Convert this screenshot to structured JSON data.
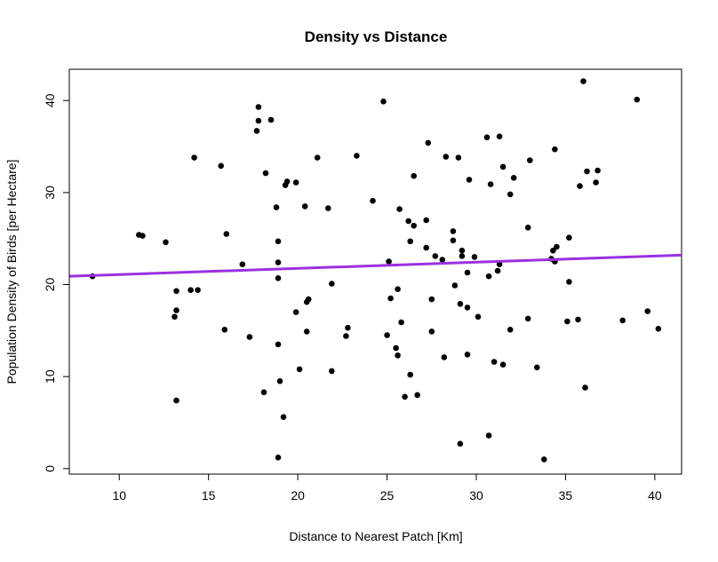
{
  "chart_data": {
    "type": "scatter",
    "title": "Density vs Distance",
    "xlabel": "Distance to Nearest Patch [Km]",
    "ylabel": "Population Density of Birds [per Hectare]",
    "xlim": [
      7.2,
      41.5
    ],
    "ylim": [
      -0.6,
      43.4
    ],
    "xticks": [
      10,
      15,
      20,
      25,
      30,
      35,
      40
    ],
    "yticks": [
      0,
      10,
      20,
      30,
      40
    ],
    "grid": false,
    "point_color": "#000000",
    "line_color": "#9b30e0",
    "regression_line": {
      "x": [
        7.2,
        41.5
      ],
      "y": [
        20.9,
        23.2
      ]
    },
    "points": [
      [
        8.5,
        20.9
      ],
      [
        11.1,
        25.4
      ],
      [
        11.3,
        25.3
      ],
      [
        12.6,
        24.6
      ],
      [
        13.2,
        19.3
      ],
      [
        13.1,
        16.5
      ],
      [
        13.2,
        17.2
      ],
      [
        13.2,
        7.4
      ],
      [
        14.0,
        19.4
      ],
      [
        14.2,
        33.8
      ],
      [
        14.4,
        19.4
      ],
      [
        15.7,
        32.9
      ],
      [
        15.9,
        15.1
      ],
      [
        16.0,
        25.5
      ],
      [
        16.9,
        22.2
      ],
      [
        17.3,
        14.3
      ],
      [
        17.7,
        36.7
      ],
      [
        17.8,
        39.3
      ],
      [
        17.8,
        37.8
      ],
      [
        18.1,
        8.3
      ],
      [
        18.2,
        32.1
      ],
      [
        18.5,
        37.9
      ],
      [
        18.8,
        28.4
      ],
      [
        18.9,
        24.7
      ],
      [
        18.9,
        22.4
      ],
      [
        18.9,
        20.7
      ],
      [
        18.9,
        13.5
      ],
      [
        19.0,
        9.5
      ],
      [
        18.9,
        1.2
      ],
      [
        19.3,
        30.8
      ],
      [
        19.4,
        31.2
      ],
      [
        19.2,
        5.6
      ],
      [
        19.9,
        31.1
      ],
      [
        19.9,
        17.0
      ],
      [
        20.1,
        10.8
      ],
      [
        20.4,
        28.5
      ],
      [
        20.5,
        18.1
      ],
      [
        20.6,
        18.4
      ],
      [
        20.5,
        14.9
      ],
      [
        21.1,
        33.8
      ],
      [
        21.7,
        28.3
      ],
      [
        21.9,
        20.1
      ],
      [
        21.9,
        10.6
      ],
      [
        22.7,
        14.4
      ],
      [
        22.8,
        15.3
      ],
      [
        23.3,
        34.0
      ],
      [
        24.2,
        29.1
      ],
      [
        24.8,
        39.9
      ],
      [
        25.0,
        14.5
      ],
      [
        25.1,
        22.5
      ],
      [
        25.2,
        18.5
      ],
      [
        25.5,
        13.1
      ],
      [
        25.6,
        12.3
      ],
      [
        25.6,
        19.5
      ],
      [
        25.7,
        28.2
      ],
      [
        25.8,
        15.9
      ],
      [
        26.0,
        7.8
      ],
      [
        26.2,
        26.9
      ],
      [
        26.3,
        24.7
      ],
      [
        26.3,
        10.2
      ],
      [
        26.5,
        26.4
      ],
      [
        26.5,
        31.8
      ],
      [
        26.7,
        8.0
      ],
      [
        27.2,
        24.0
      ],
      [
        27.2,
        27.0
      ],
      [
        27.3,
        35.4
      ],
      [
        27.5,
        18.4
      ],
      [
        27.5,
        14.9
      ],
      [
        27.7,
        23.1
      ],
      [
        28.1,
        22.7
      ],
      [
        28.2,
        12.1
      ],
      [
        28.3,
        33.9
      ],
      [
        28.7,
        25.8
      ],
      [
        28.7,
        24.8
      ],
      [
        28.8,
        19.9
      ],
      [
        29.0,
        33.8
      ],
      [
        29.1,
        17.9
      ],
      [
        29.1,
        2.7
      ],
      [
        29.2,
        23.1
      ],
      [
        29.2,
        23.7
      ],
      [
        29.5,
        12.4
      ],
      [
        29.5,
        17.5
      ],
      [
        29.5,
        21.3
      ],
      [
        29.6,
        31.4
      ],
      [
        29.9,
        23.0
      ],
      [
        30.1,
        16.5
      ],
      [
        30.6,
        36.0
      ],
      [
        30.7,
        20.9
      ],
      [
        30.7,
        3.6
      ],
      [
        30.8,
        30.9
      ],
      [
        31.0,
        11.6
      ],
      [
        31.2,
        21.5
      ],
      [
        31.3,
        22.2
      ],
      [
        31.3,
        36.1
      ],
      [
        31.5,
        32.8
      ],
      [
        31.5,
        11.3
      ],
      [
        31.9,
        29.8
      ],
      [
        31.9,
        15.1
      ],
      [
        32.1,
        31.6
      ],
      [
        32.9,
        26.2
      ],
      [
        32.9,
        16.3
      ],
      [
        33.0,
        33.5
      ],
      [
        33.4,
        11.0
      ],
      [
        33.8,
        1.0
      ],
      [
        34.2,
        22.8
      ],
      [
        34.3,
        23.7
      ],
      [
        34.4,
        22.5
      ],
      [
        34.4,
        34.7
      ],
      [
        34.5,
        24.1
      ],
      [
        35.1,
        16.0
      ],
      [
        35.2,
        25.1
      ],
      [
        35.2,
        20.3
      ],
      [
        35.7,
        16.2
      ],
      [
        35.8,
        30.7
      ],
      [
        36.0,
        42.1
      ],
      [
        36.1,
        8.8
      ],
      [
        36.2,
        32.3
      ],
      [
        36.7,
        31.1
      ],
      [
        36.8,
        32.4
      ],
      [
        38.2,
        16.1
      ],
      [
        39.0,
        40.1
      ],
      [
        39.6,
        17.1
      ],
      [
        40.2,
        15.2
      ]
    ]
  }
}
